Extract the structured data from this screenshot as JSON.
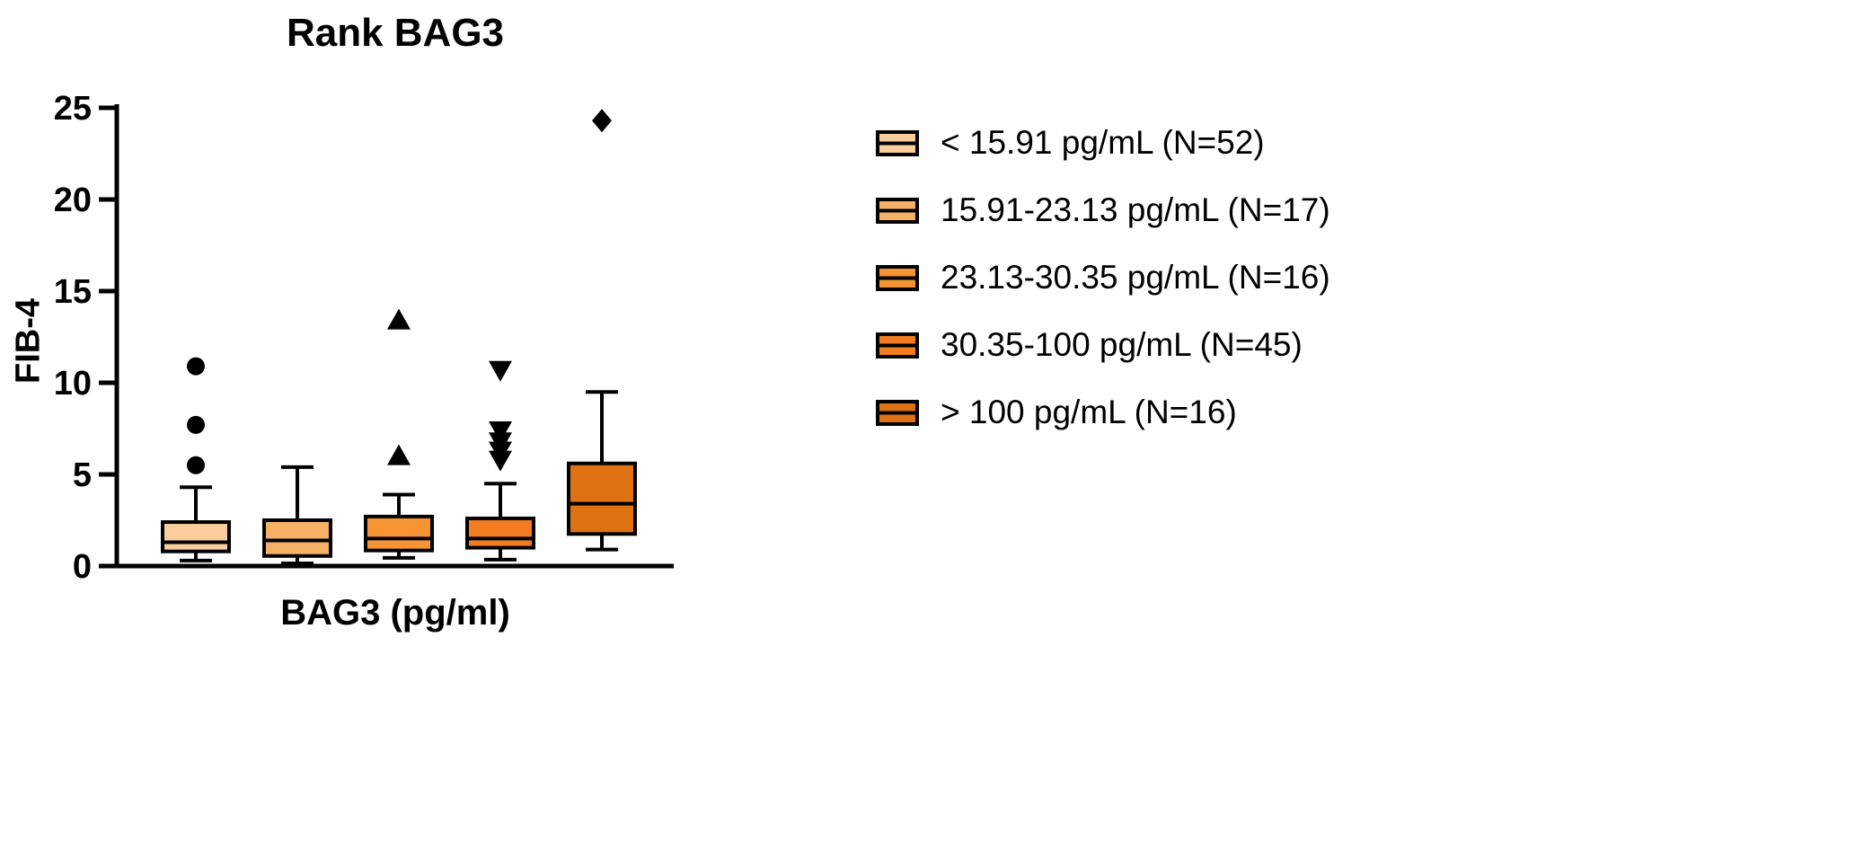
{
  "chart_data": {
    "type": "box",
    "title": "Rank BAG3",
    "xlabel": "BAG3 (pg/ml)",
    "ylabel": "FIB-4",
    "ylim": [
      0,
      25
    ],
    "yticks": [
      0,
      5,
      10,
      15,
      20,
      25
    ],
    "grid": false,
    "legend_position": "right",
    "series": [
      {
        "name": "< 15.91 pg/mL (N=52)",
        "color": "#F9CD9C",
        "whisker_low": 0.3,
        "q1": 0.8,
        "median": 1.3,
        "q3": 2.4,
        "whisker_high": 4.3,
        "outliers": [
          5.5,
          7.7,
          10.9
        ],
        "outlier_marker": "circle"
      },
      {
        "name": "15.91-23.13 pg/mL (N=17)",
        "color": "#F7B164",
        "whisker_low": 0.15,
        "q1": 0.55,
        "median": 1.4,
        "q3": 2.5,
        "whisker_high": 5.4,
        "outliers": [],
        "outlier_marker": "circle"
      },
      {
        "name": "23.13-30.35 pg/mL (N=16)",
        "color": "#F69433",
        "whisker_low": 0.45,
        "q1": 0.85,
        "median": 1.5,
        "q3": 2.7,
        "whisker_high": 3.9,
        "outliers": [
          6.0,
          13.4
        ],
        "outlier_marker": "triangle-up"
      },
      {
        "name": "30.35-100 pg/mL (N=45)",
        "color": "#F37B20",
        "whisker_low": 0.35,
        "q1": 1.0,
        "median": 1.5,
        "q3": 2.6,
        "whisker_high": 4.5,
        "outliers": [
          5.8,
          6.3,
          6.8,
          7.4,
          10.7
        ],
        "outlier_marker": "triangle-down"
      },
      {
        "name": "> 100 pg/mL (N=16)",
        "color": "#DE7112",
        "whisker_low": 0.9,
        "q1": 1.75,
        "median": 3.4,
        "q3": 5.6,
        "whisker_high": 9.5,
        "outliers": [
          24.3
        ],
        "outlier_marker": "diamond"
      }
    ]
  }
}
